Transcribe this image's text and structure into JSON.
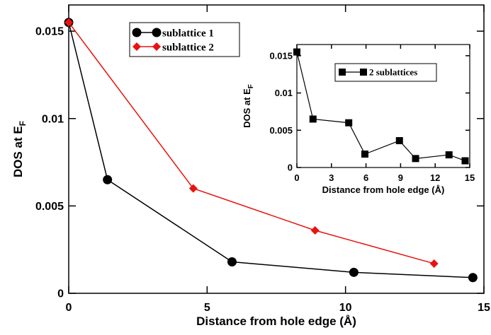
{
  "chart_data": [
    {
      "type": "line",
      "xlabel": "Distance from hole edge (Å)",
      "ylabel_main": "DOS at E",
      "ylabel_sub": "F",
      "xlim": [
        0,
        15
      ],
      "ylim": [
        0,
        0.0165
      ],
      "xticks": [
        0,
        5,
        10,
        15
      ],
      "xtick_labels": [
        "0",
        "5",
        "10",
        "15"
      ],
      "yticks": [
        0,
        0.005,
        0.01,
        0.015
      ],
      "ytick_labels": [
        "0",
        "0.005",
        "0.01",
        "0.015"
      ],
      "grid": false,
      "legend_position": "top-center",
      "series": [
        {
          "name": "sublattice 1",
          "color": "#000000",
          "marker": "circle",
          "x": [
            0,
            1.4,
            5.9,
            10.3,
            14.6
          ],
          "y": [
            0.0155,
            0.0065,
            0.0018,
            0.0012,
            0.0009
          ]
        },
        {
          "name": "sublattice 2",
          "color": "#e8130f",
          "marker": "diamond",
          "x": [
            0,
            4.5,
            8.9,
            13.2
          ],
          "y": [
            0.0155,
            0.006,
            0.0036,
            0.0017
          ]
        }
      ]
    },
    {
      "type": "line",
      "xlabel": "Distance from hole edge (Å)",
      "ylabel_main": "DOS at E",
      "ylabel_sub": "F",
      "xlim": [
        0,
        15
      ],
      "ylim": [
        0,
        0.0165
      ],
      "xticks": [
        0,
        3,
        6,
        9,
        12,
        15
      ],
      "xtick_labels": [
        "0",
        "3",
        "6",
        "9",
        "12",
        "15"
      ],
      "yticks": [
        0,
        0.005,
        0.01,
        0.015
      ],
      "ytick_labels": [
        "0",
        "0.005",
        "0.01",
        "0.015"
      ],
      "grid": false,
      "legend_position": "top-center",
      "series": [
        {
          "name": "2 sublattices",
          "color": "#000000",
          "marker": "square",
          "x": [
            0,
            1.4,
            4.5,
            5.9,
            8.9,
            10.3,
            13.2,
            14.6
          ],
          "y": [
            0.0155,
            0.0065,
            0.006,
            0.0018,
            0.0036,
            0.0012,
            0.0017,
            0.0009
          ]
        }
      ]
    }
  ]
}
